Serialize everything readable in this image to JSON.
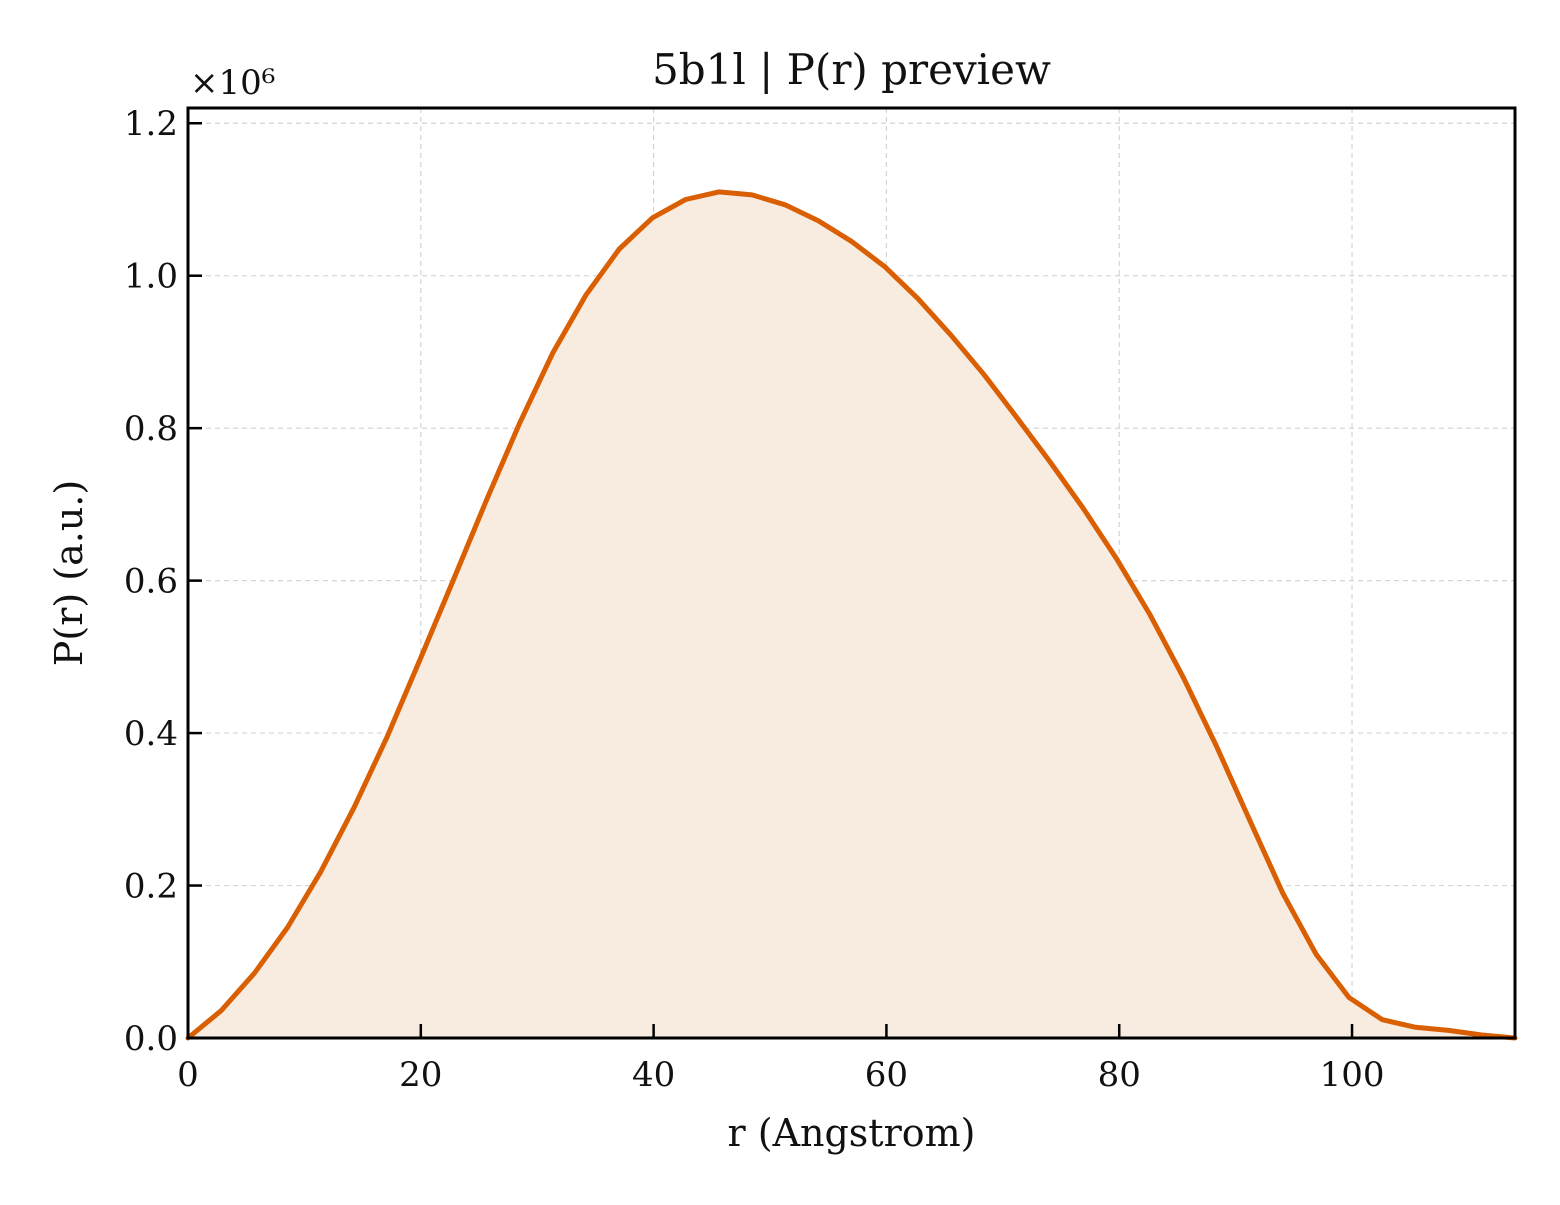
{
  "chart_data": {
    "type": "area",
    "title": "5b1l | P(r) preview",
    "xlabel": "r (Angstrom)",
    "ylabel": "P(r) (a.u.)",
    "y_scale_label": "×10⁶",
    "xlim": [
      0,
      114
    ],
    "ylim": [
      0,
      1.22
    ],
    "x_ticks": [
      0,
      20,
      40,
      60,
      80,
      100
    ],
    "x_tick_labels": [
      "0",
      "20",
      "40",
      "60",
      "80",
      "100"
    ],
    "y_ticks": [
      0,
      0.2,
      0.4,
      0.6,
      0.8,
      1.0,
      1.2
    ],
    "y_tick_labels": [
      "0.0",
      "0.2",
      "0.4",
      "0.6",
      "0.8",
      "1.0",
      "1.2"
    ],
    "grid": true,
    "legend": "none",
    "line_color": "#d95f02",
    "fill_color": "#f8ebe0",
    "series": [
      {
        "x": [
          0,
          2.85,
          5.7,
          8.55,
          11.4,
          14.25,
          17.1,
          19.95,
          22.8,
          25.65,
          28.5,
          31.35,
          34.2,
          37.05,
          39.9,
          42.75,
          45.6,
          48.45,
          51.3,
          54.15,
          57.0,
          59.85,
          62.7,
          65.55,
          68.4,
          71.25,
          74.1,
          76.95,
          79.8,
          82.65,
          85.5,
          88.35,
          91.2,
          94.05,
          96.9,
          99.75,
          102.6,
          105.45,
          108.3,
          111.15,
          114.0
        ],
        "y": [
          0.0,
          0.036,
          0.085,
          0.145,
          0.218,
          0.302,
          0.395,
          0.497,
          0.601,
          0.706,
          0.807,
          0.899,
          0.975,
          1.035,
          1.076,
          1.1,
          1.11,
          1.106,
          1.093,
          1.072,
          1.045,
          1.012,
          0.97,
          0.922,
          0.87,
          0.813,
          0.755,
          0.694,
          0.628,
          0.555,
          0.473,
          0.383,
          0.286,
          0.19,
          0.11,
          0.053,
          0.024,
          0.014,
          0.01,
          0.004,
          0.0
        ]
      }
    ]
  }
}
